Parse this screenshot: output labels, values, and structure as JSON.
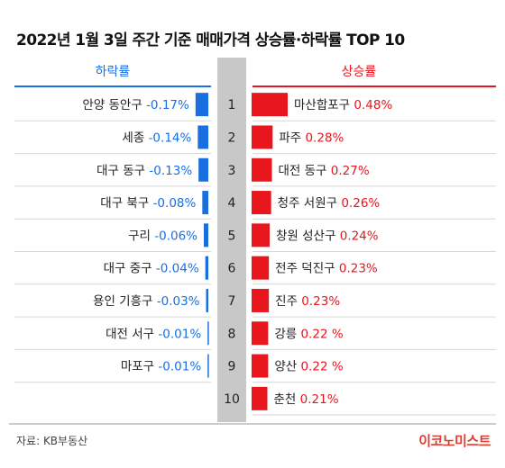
{
  "title": "2022년 1월 3일 주간 기준 매매가격 상승률·하락률 TOP 10",
  "source": "자료: KB부동산",
  "logo": "이코노미스트",
  "colors": {
    "fall": "#1a6fe0",
    "rise": "#e8161d",
    "rank_column": "#c8c8c8"
  },
  "chart_data": {
    "type": "bar",
    "title": "2022년 1월 3일 주간 기준 매매가격 상승률·하락률 TOP 10",
    "ranks": [
      "1",
      "2",
      "3",
      "4",
      "5",
      "6",
      "7",
      "8",
      "9",
      "10"
    ],
    "series": [
      {
        "name": "하락률",
        "categories": [
          "안양 동안구",
          "세종",
          "대구 동구",
          "대구 북구",
          "구리",
          "대구 중구",
          "용인 기흥구",
          "대전 서구",
          "마포구"
        ],
        "values": [
          -0.17,
          -0.14,
          -0.13,
          -0.08,
          -0.06,
          -0.04,
          -0.03,
          -0.01,
          -0.01
        ],
        "labels": [
          "-0.17%",
          "-0.14%",
          "-0.13%",
          "-0.08%",
          "-0.06%",
          "-0.04%",
          "-0.03%",
          "-0.01%",
          "-0.01%"
        ]
      },
      {
        "name": "상승률",
        "categories": [
          "마산합포구",
          "파주",
          "대전 동구",
          "청주 서원구",
          "창원 성산구",
          "전주 덕진구",
          "진주",
          "강릉",
          "양산",
          "춘천"
        ],
        "values": [
          0.48,
          0.28,
          0.27,
          0.26,
          0.24,
          0.23,
          0.23,
          0.22,
          0.22,
          0.21
        ],
        "labels": [
          "0.48%",
          "0.28%",
          "0.27%",
          "0.26%",
          "0.24%",
          "0.23%",
          "0.23%",
          "0.22 %",
          "0.22 %",
          "0.21%"
        ]
      }
    ]
  }
}
